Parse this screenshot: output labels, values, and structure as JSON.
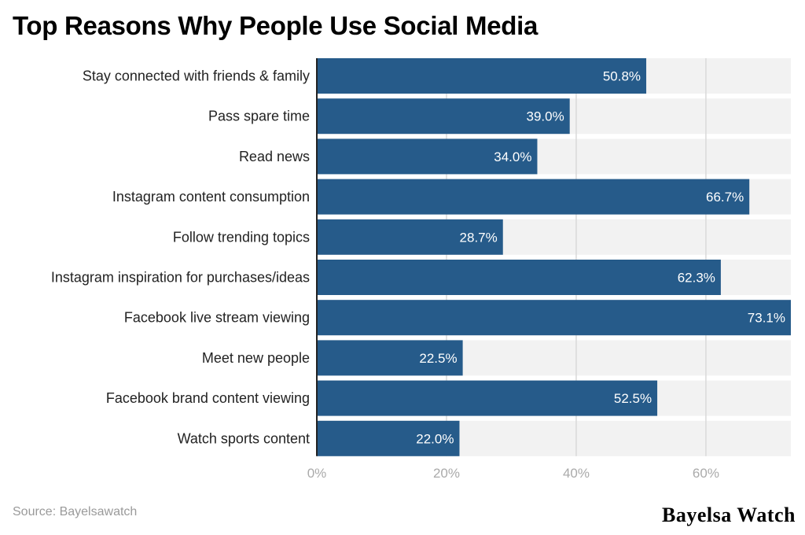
{
  "title": "Top Reasons Why People Use Social Media",
  "source": "Source: Bayelsawatch",
  "brand": "Bayelsa Watch",
  "colors": {
    "bar": "#265b8a",
    "band": "#f2f2f2",
    "grid": "#d9d9d9",
    "axis": "#222222",
    "tick_text": "#aaaaaa",
    "label_text": "#222222",
    "value_text": "#ffffff"
  },
  "chart_data": {
    "type": "bar",
    "orientation": "horizontal",
    "categories": [
      "Stay connected with friends & family",
      "Pass spare time",
      "Read news",
      "Instagram content consumption",
      "Follow trending topics",
      "Instagram inspiration for purchases/ideas",
      "Facebook live stream viewing",
      "Meet new people",
      "Facebook brand content viewing",
      "Watch sports content"
    ],
    "values": [
      50.8,
      39.0,
      34.0,
      66.7,
      28.7,
      62.3,
      73.1,
      22.5,
      52.5,
      22.0
    ],
    "value_labels": [
      "50.8%",
      "39.0%",
      "34.0%",
      "66.7%",
      "28.7%",
      "62.3%",
      "73.1%",
      "22.5%",
      "52.5%",
      "22.0%"
    ],
    "x_ticks": [
      0,
      20,
      40,
      60
    ],
    "x_tick_labels": [
      "0%",
      "20%",
      "40%",
      "60%"
    ],
    "xlim": [
      0,
      73.1
    ],
    "xlabel": "",
    "ylabel": "",
    "grid": true,
    "legend": "none"
  }
}
